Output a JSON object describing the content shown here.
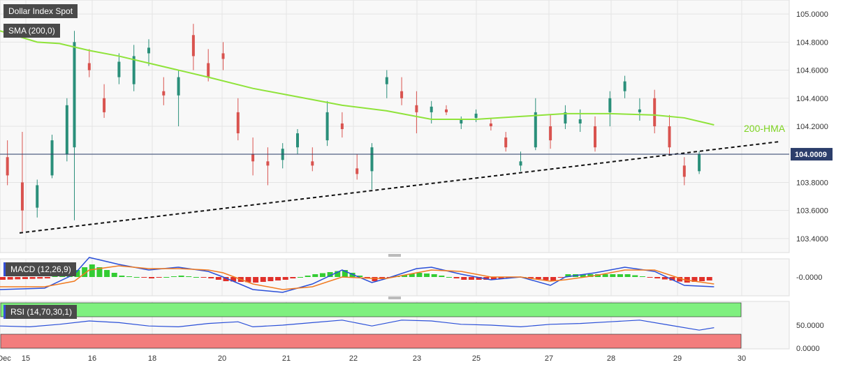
{
  "chart_data": {
    "type": "candlestick",
    "title": "Dollar Index Spot",
    "last_price_label": "104.0009",
    "annotation": "200-HMA",
    "x_ticks": [
      "Dec",
      "15",
      "16",
      "18",
      "20",
      "21",
      "22",
      "23",
      "25",
      "27",
      "28",
      "29",
      "30"
    ],
    "y_ticks": [
      "105.0000",
      "104.8000",
      "104.6000",
      "104.4000",
      "104.2000",
      "104.0000",
      "103.8000",
      "103.6000",
      "103.4000"
    ],
    "ylim": [
      103.3,
      105.1
    ],
    "last_price": 104.0009,
    "trendline": [
      [
        0,
        103.44
      ],
      [
        100,
        104.09
      ]
    ],
    "sma_indicator": {
      "label": "SMA (200,0)",
      "points": [
        [
          0,
          104.88
        ],
        [
          5,
          104.8
        ],
        [
          8,
          104.79
        ],
        [
          12,
          104.74
        ],
        [
          16,
          104.7
        ],
        [
          20,
          104.65
        ],
        [
          24,
          104.6
        ],
        [
          28,
          104.55
        ],
        [
          34,
          104.47
        ],
        [
          40,
          104.41
        ],
        [
          46,
          104.35
        ],
        [
          52,
          104.31
        ],
        [
          58,
          104.25
        ],
        [
          64,
          104.25
        ],
        [
          70,
          104.27
        ],
        [
          76,
          104.29
        ],
        [
          82,
          104.29
        ],
        [
          88,
          104.28
        ],
        [
          92,
          104.26
        ],
        [
          96,
          104.21
        ]
      ]
    },
    "candles_sample": [
      {
        "x": 1,
        "o": 103.98,
        "h": 104.1,
        "l": 103.78,
        "c": 103.85
      },
      {
        "x": 3,
        "o": 103.8,
        "h": 104.16,
        "l": 103.45,
        "c": 103.6
      },
      {
        "x": 5,
        "o": 103.62,
        "h": 103.82,
        "l": 103.55,
        "c": 103.78
      },
      {
        "x": 7,
        "o": 103.85,
        "h": 104.14,
        "l": 103.83,
        "c": 104.1
      },
      {
        "x": 9,
        "o": 104.0,
        "h": 104.4,
        "l": 103.95,
        "c": 104.35
      },
      {
        "x": 10,
        "o": 104.05,
        "h": 104.88,
        "l": 103.53,
        "c": 104.8
      },
      {
        "x": 12,
        "o": 104.65,
        "h": 104.75,
        "l": 104.55,
        "c": 104.6
      },
      {
        "x": 14,
        "o": 104.4,
        "h": 104.5,
        "l": 104.26,
        "c": 104.3
      },
      {
        "x": 16,
        "o": 104.55,
        "h": 104.72,
        "l": 104.5,
        "c": 104.66
      },
      {
        "x": 18,
        "o": 104.5,
        "h": 104.78,
        "l": 104.45,
        "c": 104.7
      },
      {
        "x": 20,
        "o": 104.72,
        "h": 104.82,
        "l": 104.63,
        "c": 104.76
      },
      {
        "x": 22,
        "o": 104.45,
        "h": 104.55,
        "l": 104.35,
        "c": 104.42
      },
      {
        "x": 24,
        "o": 104.42,
        "h": 104.6,
        "l": 104.2,
        "c": 104.55
      },
      {
        "x": 26,
        "o": 104.85,
        "h": 104.93,
        "l": 104.6,
        "c": 104.7
      },
      {
        "x": 28,
        "o": 104.65,
        "h": 104.75,
        "l": 104.52,
        "c": 104.55
      },
      {
        "x": 30,
        "o": 104.72,
        "h": 104.8,
        "l": 104.6,
        "c": 104.68
      },
      {
        "x": 32,
        "o": 104.3,
        "h": 104.4,
        "l": 104.1,
        "c": 104.15
      },
      {
        "x": 34,
        "o": 104.0,
        "h": 104.12,
        "l": 103.85,
        "c": 103.95
      },
      {
        "x": 36,
        "o": 103.95,
        "h": 104.05,
        "l": 103.78,
        "c": 103.92
      },
      {
        "x": 38,
        "o": 103.96,
        "h": 104.08,
        "l": 103.9,
        "c": 104.04
      },
      {
        "x": 40,
        "o": 104.05,
        "h": 104.18,
        "l": 104.0,
        "c": 104.15
      },
      {
        "x": 42,
        "o": 103.95,
        "h": 104.05,
        "l": 103.88,
        "c": 103.92
      },
      {
        "x": 44,
        "o": 104.1,
        "h": 104.38,
        "l": 104.06,
        "c": 104.3
      },
      {
        "x": 46,
        "o": 104.22,
        "h": 104.3,
        "l": 104.12,
        "c": 104.18
      },
      {
        "x": 48,
        "o": 103.9,
        "h": 104.0,
        "l": 103.82,
        "c": 103.86
      },
      {
        "x": 50,
        "o": 103.88,
        "h": 104.08,
        "l": 103.75,
        "c": 104.05
      },
      {
        "x": 52,
        "o": 104.5,
        "h": 104.6,
        "l": 104.4,
        "c": 104.55
      },
      {
        "x": 54,
        "o": 104.45,
        "h": 104.55,
        "l": 104.35,
        "c": 104.4
      },
      {
        "x": 56,
        "o": 104.35,
        "h": 104.45,
        "l": 104.15,
        "c": 104.3
      },
      {
        "x": 58,
        "o": 104.3,
        "h": 104.38,
        "l": 104.22,
        "c": 104.34
      },
      {
        "x": 60,
        "o": 104.32,
        "h": 104.35,
        "l": 104.28,
        "c": 104.3
      },
      {
        "x": 62,
        "o": 104.22,
        "h": 104.27,
        "l": 104.18,
        "c": 104.25
      },
      {
        "x": 64,
        "o": 104.26,
        "h": 104.32,
        "l": 104.23,
        "c": 104.29
      },
      {
        "x": 66,
        "o": 104.22,
        "h": 104.26,
        "l": 104.17,
        "c": 104.2
      },
      {
        "x": 68,
        "o": 104.12,
        "h": 104.16,
        "l": 104.02,
        "c": 104.05
      },
      {
        "x": 70,
        "o": 103.92,
        "h": 104.02,
        "l": 103.88,
        "c": 103.95
      },
      {
        "x": 72,
        "o": 104.05,
        "h": 104.4,
        "l": 104.03,
        "c": 104.3
      },
      {
        "x": 74,
        "o": 104.2,
        "h": 104.28,
        "l": 104.04,
        "c": 104.1
      },
      {
        "x": 76,
        "o": 104.22,
        "h": 104.35,
        "l": 104.18,
        "c": 104.3
      },
      {
        "x": 78,
        "o": 104.22,
        "h": 104.32,
        "l": 104.16,
        "c": 104.25
      },
      {
        "x": 80,
        "o": 104.2,
        "h": 104.27,
        "l": 104.02,
        "c": 104.05
      },
      {
        "x": 82,
        "o": 104.3,
        "h": 104.45,
        "l": 104.2,
        "c": 104.4
      },
      {
        "x": 84,
        "o": 104.45,
        "h": 104.56,
        "l": 104.4,
        "c": 104.52
      },
      {
        "x": 86,
        "o": 104.3,
        "h": 104.4,
        "l": 104.24,
        "c": 104.32
      },
      {
        "x": 88,
        "o": 104.4,
        "h": 104.46,
        "l": 104.15,
        "c": 104.2
      },
      {
        "x": 90,
        "o": 104.2,
        "h": 104.28,
        "l": 104.0,
        "c": 104.05
      },
      {
        "x": 92,
        "o": 103.92,
        "h": 103.98,
        "l": 103.78,
        "c": 103.84
      },
      {
        "x": 94,
        "o": 103.88,
        "h": 104.02,
        "l": 103.86,
        "c": 104.0
      }
    ],
    "macd": {
      "label": "MACD (12,26,9)",
      "y_tick": "-0.0000",
      "macd": [
        [
          0,
          -0.09
        ],
        [
          6,
          -0.08
        ],
        [
          10,
          0.02
        ],
        [
          12,
          0.14
        ],
        [
          16,
          0.09
        ],
        [
          20,
          0.05
        ],
        [
          24,
          0.07
        ],
        [
          28,
          0.04
        ],
        [
          30,
          0.0
        ],
        [
          34,
          -0.09
        ],
        [
          38,
          -0.11
        ],
        [
          42,
          -0.05
        ],
        [
          46,
          0.05
        ],
        [
          50,
          -0.04
        ],
        [
          52,
          -0.01
        ],
        [
          56,
          0.06
        ],
        [
          58,
          0.07
        ],
        [
          62,
          0.02
        ],
        [
          66,
          -0.02
        ],
        [
          70,
          0.0
        ],
        [
          74,
          -0.06
        ],
        [
          76,
          0.0
        ],
        [
          80,
          0.03
        ],
        [
          84,
          0.07
        ],
        [
          88,
          0.04
        ],
        [
          92,
          -0.06
        ],
        [
          96,
          -0.07
        ]
      ],
      "signal": [
        [
          0,
          -0.07
        ],
        [
          6,
          -0.07
        ],
        [
          10,
          -0.03
        ],
        [
          12,
          0.05
        ],
        [
          16,
          0.08
        ],
        [
          20,
          0.06
        ],
        [
          24,
          0.06
        ],
        [
          28,
          0.05
        ],
        [
          30,
          0.03
        ],
        [
          34,
          -0.05
        ],
        [
          38,
          -0.09
        ],
        [
          42,
          -0.07
        ],
        [
          46,
          0.0
        ],
        [
          50,
          -0.01
        ],
        [
          52,
          -0.01
        ],
        [
          56,
          0.03
        ],
        [
          58,
          0.05
        ],
        [
          62,
          0.04
        ],
        [
          66,
          0.0
        ],
        [
          70,
          0.0
        ],
        [
          74,
          -0.03
        ],
        [
          76,
          -0.02
        ],
        [
          80,
          0.01
        ],
        [
          84,
          0.05
        ],
        [
          88,
          0.05
        ],
        [
          92,
          -0.02
        ],
        [
          96,
          -0.05
        ]
      ]
    },
    "rsi": {
      "label": "RSI (14,70,30,1)",
      "y_ticks": [
        "50.0000",
        "0.0000"
      ],
      "overbought": 70,
      "oversold": 30,
      "values": [
        [
          0,
          48
        ],
        [
          4,
          46
        ],
        [
          8,
          52
        ],
        [
          12,
          60
        ],
        [
          16,
          56
        ],
        [
          20,
          48
        ],
        [
          24,
          46
        ],
        [
          28,
          54
        ],
        [
          32,
          58
        ],
        [
          34,
          46
        ],
        [
          38,
          50
        ],
        [
          42,
          56
        ],
        [
          46,
          62
        ],
        [
          50,
          48
        ],
        [
          54,
          62
        ],
        [
          58,
          60
        ],
        [
          62,
          52
        ],
        [
          66,
          50
        ],
        [
          70,
          46
        ],
        [
          74,
          52
        ],
        [
          78,
          54
        ],
        [
          82,
          58
        ],
        [
          86,
          62
        ],
        [
          90,
          50
        ],
        [
          94,
          38
        ],
        [
          96,
          44
        ]
      ]
    }
  }
}
